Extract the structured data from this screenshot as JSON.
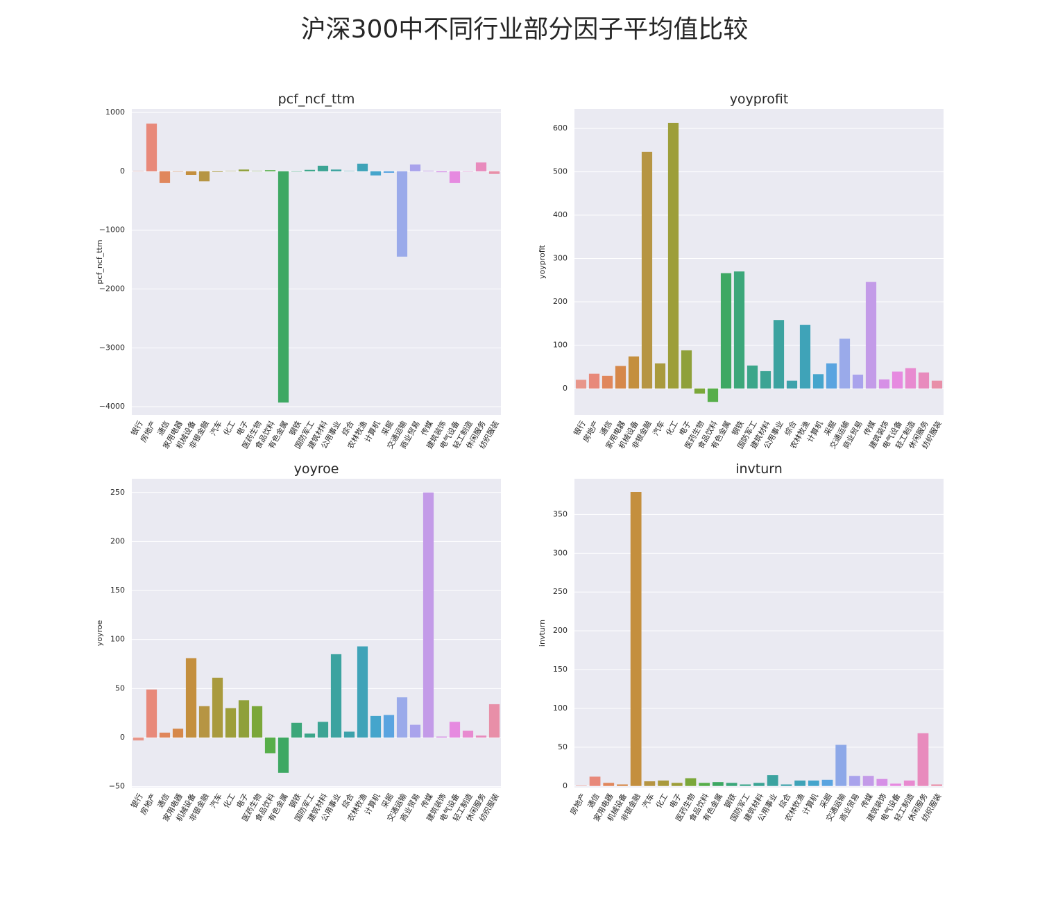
{
  "title": "沪深300中不同行业部分因子平均值比较",
  "chart_data": [
    {
      "type": "bar",
      "title": "pcf_ncf_ttm",
      "ylabel": "pcf_ncf_ttm",
      "grid": true,
      "categories": [
        "银行",
        "房地产",
        "通信",
        "家用电器",
        "机械设备",
        "非银金融",
        "汽车",
        "化工",
        "电子",
        "医药生物",
        "食品饮料",
        "有色金属",
        "钢铁",
        "国防军工",
        "建筑材料",
        "公用事业",
        "综合",
        "农林牧渔",
        "计算机",
        "采掘",
        "交通运输",
        "商业贸易",
        "传媒",
        "建筑装饰",
        "电气设备",
        "轻工制造",
        "休闲服务",
        "纺织服装"
      ],
      "values": [
        5,
        810,
        -200,
        -5,
        -60,
        -170,
        -10,
        5,
        30,
        5,
        20,
        -3930,
        -5,
        25,
        95,
        30,
        5,
        130,
        -70,
        -25,
        -1450,
        115,
        10,
        -15,
        -200,
        -5,
        150,
        -45
      ],
      "colors": [
        "#e8968a",
        "#e8897a",
        "#e0875c",
        "#d6884a",
        "#c48f3e",
        "#b69543",
        "#a99a3d",
        "#9d9e3a",
        "#8fa03a",
        "#7ba73a",
        "#57ae4a",
        "#3ea863",
        "#3ca77a",
        "#3ba68a",
        "#3ca494",
        "#3ca3a0",
        "#3da2ab",
        "#3fa3b8",
        "#45a5cc",
        "#5aa4e0",
        "#9aaaea",
        "#a9a3ec",
        "#c39be8",
        "#d690e6",
        "#e68ae0",
        "#e88ad0",
        "#e88bbd",
        "#e88fa8"
      ],
      "ylim": [
        -4140,
        1060
      ],
      "yticks": [
        {
          "value": -4000,
          "label": "−4000"
        },
        {
          "value": -3000,
          "label": "−3000"
        },
        {
          "value": -2000,
          "label": "−2000"
        },
        {
          "value": -1000,
          "label": "−1000"
        },
        0,
        1000
      ]
    },
    {
      "type": "bar",
      "title": "yoyprofit",
      "ylabel": "yoyprofit",
      "grid": true,
      "categories": [
        "银行",
        "房地产",
        "通信",
        "家用电器",
        "机械设备",
        "非银金融",
        "汽车",
        "化工",
        "电子",
        "医药生物",
        "食品饮料",
        "有色金属",
        "钢铁",
        "国防军工",
        "建筑材料",
        "公用事业",
        "综合",
        "农林牧渔",
        "计算机",
        "采掘",
        "交通运输",
        "商业贸易",
        "传媒",
        "建筑装饰",
        "电气设备",
        "轻工制造",
        "休闲服务",
        "纺织服装"
      ],
      "values": [
        20,
        34,
        29,
        52,
        74,
        546,
        58,
        613,
        88,
        -12,
        -31,
        266,
        270,
        53,
        40,
        158,
        18,
        147,
        33,
        58,
        115,
        32,
        246,
        21,
        39,
        47,
        37,
        18
      ],
      "colors": [
        "#e8968a",
        "#e8897a",
        "#e0875c",
        "#d6884a",
        "#c48f3e",
        "#b69543",
        "#a99a3d",
        "#9d9e3a",
        "#8fa03a",
        "#7ba73a",
        "#57ae4a",
        "#3ea863",
        "#3ca77a",
        "#3ba68a",
        "#3ca494",
        "#3ca3a0",
        "#3da2ab",
        "#3fa3b8",
        "#45a5cc",
        "#5aa4e0",
        "#9aaaea",
        "#a9a3ec",
        "#c39be8",
        "#d690e6",
        "#e68ae0",
        "#e88ad0",
        "#e88bbd",
        "#e88fa8"
      ],
      "ylim": [
        -61,
        645
      ],
      "yticks": [
        0,
        100,
        200,
        300,
        400,
        500,
        600
      ]
    },
    {
      "type": "bar",
      "title": "yoyroe",
      "ylabel": "yoyroe",
      "grid": true,
      "categories": [
        "银行",
        "房地产",
        "通信",
        "家用电器",
        "机械设备",
        "非银金融",
        "汽车",
        "化工",
        "电子",
        "医药生物",
        "食品饮料",
        "有色金属",
        "钢铁",
        "国防军工",
        "建筑材料",
        "公用事业",
        "综合",
        "农林牧渔",
        "计算机",
        "采掘",
        "交通运输",
        "商业贸易",
        "传媒",
        "建筑装饰",
        "电气设备",
        "轻工制造",
        "休闲服务",
        "纺织服装"
      ],
      "values": [
        -3,
        49,
        5,
        9,
        81,
        32,
        61,
        30,
        38,
        32,
        -16,
        -36,
        15,
        4,
        16,
        85,
        6,
        93,
        22,
        23,
        41,
        13,
        250,
        1,
        16,
        7,
        2,
        34
      ],
      "colors": [
        "#e8968a",
        "#e8897a",
        "#e0875c",
        "#d6884a",
        "#c48f3e",
        "#b69543",
        "#a99a3d",
        "#9d9e3a",
        "#8fa03a",
        "#7ba73a",
        "#57ae4a",
        "#3ea863",
        "#3ca77a",
        "#3ba68a",
        "#3ca494",
        "#3ca3a0",
        "#3da2ab",
        "#3fa3b8",
        "#45a5cc",
        "#5aa4e0",
        "#9aaaea",
        "#a9a3ec",
        "#c39be8",
        "#d690e6",
        "#e68ae0",
        "#e88ad0",
        "#e88bbd",
        "#e88fa8"
      ],
      "ylim": [
        -51,
        264
      ],
      "yticks": [
        {
          "value": -50,
          "label": "−50"
        },
        0,
        50,
        100,
        150,
        200,
        250
      ]
    },
    {
      "type": "bar",
      "title": "invturn",
      "ylabel": "invturn",
      "grid": true,
      "categories": [
        "房地产",
        "通信",
        "家用电器",
        "机械设备",
        "非银金融",
        "汽车",
        "化工",
        "电子",
        "医药生物",
        "食品饮料",
        "有色金属",
        "钢铁",
        "国防军工",
        "建筑材料",
        "公用事业",
        "综合",
        "农林牧渔",
        "计算机",
        "采掘",
        "交通运输",
        "商业贸易",
        "传媒",
        "建筑装饰",
        "电气设备",
        "轻工制造",
        "休闲服务",
        "纺织服装"
      ],
      "values": [
        0.5,
        12,
        4,
        2,
        379,
        6,
        7,
        4,
        10,
        4,
        5,
        4,
        2,
        4,
        14,
        2,
        7,
        7,
        8,
        53,
        13,
        13,
        9,
        3,
        7,
        68,
        2
      ],
      "colors": [
        "#e8968a",
        "#e8897a",
        "#e0875c",
        "#d6884a",
        "#c48f3e",
        "#b69543",
        "#a99a3d",
        "#9d9e3a",
        "#7ba73a",
        "#57ae4a",
        "#3ea863",
        "#3ca77a",
        "#3ba68a",
        "#3ca494",
        "#3ca3a0",
        "#3da2ab",
        "#3fa3b8",
        "#45a5cc",
        "#5aa4e0",
        "#8da8e8",
        "#a9a3ec",
        "#c39be8",
        "#d690e6",
        "#e68ae0",
        "#e88ad0",
        "#e88bbd",
        "#e88fa8"
      ],
      "ylim": [
        -2,
        396
      ],
      "yticks": [
        0,
        50,
        100,
        150,
        200,
        250,
        300,
        350
      ]
    }
  ]
}
